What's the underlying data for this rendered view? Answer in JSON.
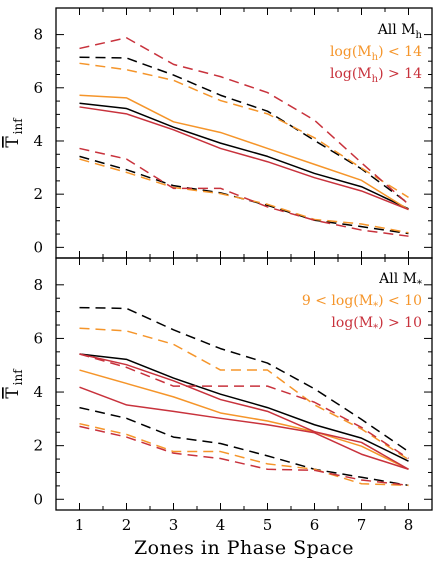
{
  "colors": {
    "black": "#000000",
    "orange": "#f5952a",
    "red": "#c8323c"
  },
  "x_axis_label": "Zones in Phase Space",
  "chart_data": [
    {
      "type": "line",
      "panel": "top",
      "ylabel": {
        "main": "T",
        "sub": "inf"
      },
      "x": [
        1,
        2,
        3,
        4,
        5,
        6,
        7,
        8
      ],
      "xticks": [
        1,
        2,
        3,
        4,
        5,
        6,
        7,
        8
      ],
      "ylim": [
        -0.4,
        9.0
      ],
      "yticks": [
        0,
        2,
        4,
        6,
        8
      ],
      "grid": false,
      "legend_position": "top-right",
      "legend": [
        {
          "pre": "All M",
          "sub": "h",
          "post": "",
          "color": "black"
        },
        {
          "pre": "log(M",
          "sub": "h",
          "post": ") < 14",
          "color": "orange"
        },
        {
          "pre": "log(M",
          "sub": "h",
          "post": ") > 14",
          "color": "red"
        }
      ],
      "series": [
        {
          "color": "black",
          "style": "solid",
          "values": [
            5.42,
            5.22,
            4.52,
            3.92,
            3.42,
            2.78,
            2.28,
            1.45
          ]
        },
        {
          "color": "black",
          "style": "dashed",
          "values": [
            7.15,
            7.12,
            6.48,
            5.72,
            5.12,
            4.02,
            2.95,
            1.65
          ]
        },
        {
          "color": "black",
          "style": "dashed",
          "values": [
            3.42,
            2.92,
            2.32,
            2.05,
            1.58,
            1.02,
            0.78,
            0.52
          ]
        },
        {
          "color": "orange",
          "style": "solid",
          "values": [
            5.72,
            5.62,
            4.72,
            4.32,
            3.72,
            3.12,
            2.52,
            1.42
          ]
        },
        {
          "color": "orange",
          "style": "dashed",
          "values": [
            6.92,
            6.68,
            6.28,
            5.52,
            5.02,
            4.12,
            2.98,
            1.88
          ]
        },
        {
          "color": "orange",
          "style": "dashed",
          "values": [
            3.32,
            2.82,
            2.25,
            2.02,
            1.62,
            1.05,
            0.88,
            0.55
          ]
        },
        {
          "color": "red",
          "style": "solid",
          "values": [
            5.28,
            5.02,
            4.42,
            3.72,
            3.22,
            2.62,
            2.12,
            1.42
          ]
        },
        {
          "color": "red",
          "style": "dashed",
          "values": [
            7.48,
            7.88,
            6.88,
            6.42,
            5.82,
            4.78,
            3.18,
            1.62
          ]
        },
        {
          "color": "red",
          "style": "dashed",
          "values": [
            3.72,
            3.32,
            2.22,
            2.22,
            1.52,
            1.02,
            0.65,
            0.42
          ]
        }
      ]
    },
    {
      "type": "line",
      "panel": "bottom",
      "ylabel": {
        "main": "T",
        "sub": "inf"
      },
      "x": [
        1,
        2,
        3,
        4,
        5,
        6,
        7,
        8
      ],
      "xticks": [
        1,
        2,
        3,
        4,
        5,
        6,
        7,
        8
      ],
      "ylim": [
        -0.4,
        9.0
      ],
      "yticks": [
        0,
        2,
        4,
        6,
        8
      ],
      "grid": false,
      "legend_position": "top-right",
      "legend": [
        {
          "pre": "All M",
          "sub": "*",
          "post": "",
          "color": "black"
        },
        {
          "pre": "9 < log(M",
          "sub": "*",
          "post": ") < 10",
          "color": "orange"
        },
        {
          "pre": "log(M",
          "sub": "*",
          "post": ") > 10",
          "color": "red"
        }
      ],
      "series": [
        {
          "color": "black",
          "style": "solid",
          "values": [
            5.42,
            5.22,
            4.52,
            3.92,
            3.42,
            2.78,
            2.28,
            1.42
          ]
        },
        {
          "color": "black",
          "style": "dashed",
          "values": [
            7.15,
            7.12,
            6.32,
            5.62,
            5.08,
            4.12,
            2.98,
            1.78
          ]
        },
        {
          "color": "black",
          "style": "dashed",
          "values": [
            3.42,
            3.02,
            2.32,
            2.08,
            1.62,
            1.12,
            0.82,
            0.52
          ]
        },
        {
          "color": "orange",
          "style": "solid",
          "values": [
            4.82,
            4.32,
            3.82,
            3.22,
            2.92,
            2.52,
            1.98,
            1.12
          ]
        },
        {
          "color": "orange",
          "style": "dashed",
          "values": [
            6.38,
            6.28,
            5.78,
            4.82,
            4.82,
            3.52,
            2.62,
            1.48
          ]
        },
        {
          "color": "orange",
          "style": "dashed",
          "values": [
            2.82,
            2.42,
            1.78,
            1.78,
            1.32,
            1.12,
            0.58,
            0.52
          ]
        },
        {
          "color": "red",
          "style": "solid",
          "values": [
            4.18,
            3.52,
            3.28,
            3.02,
            2.78,
            2.48,
            1.68,
            1.12
          ]
        },
        {
          "color": "red",
          "style": "solid",
          "values": [
            5.42,
            5.02,
            4.42,
            3.72,
            3.28,
            2.52,
            2.12,
            1.12
          ]
        },
        {
          "color": "red",
          "style": "dashed",
          "values": [
            5.42,
            4.92,
            4.22,
            4.22,
            4.22,
            3.62,
            2.68,
            1.52
          ]
        },
        {
          "color": "red",
          "style": "dashed",
          "values": [
            2.72,
            2.32,
            1.72,
            1.52,
            1.12,
            1.08,
            0.72,
            0.52
          ]
        }
      ]
    }
  ]
}
